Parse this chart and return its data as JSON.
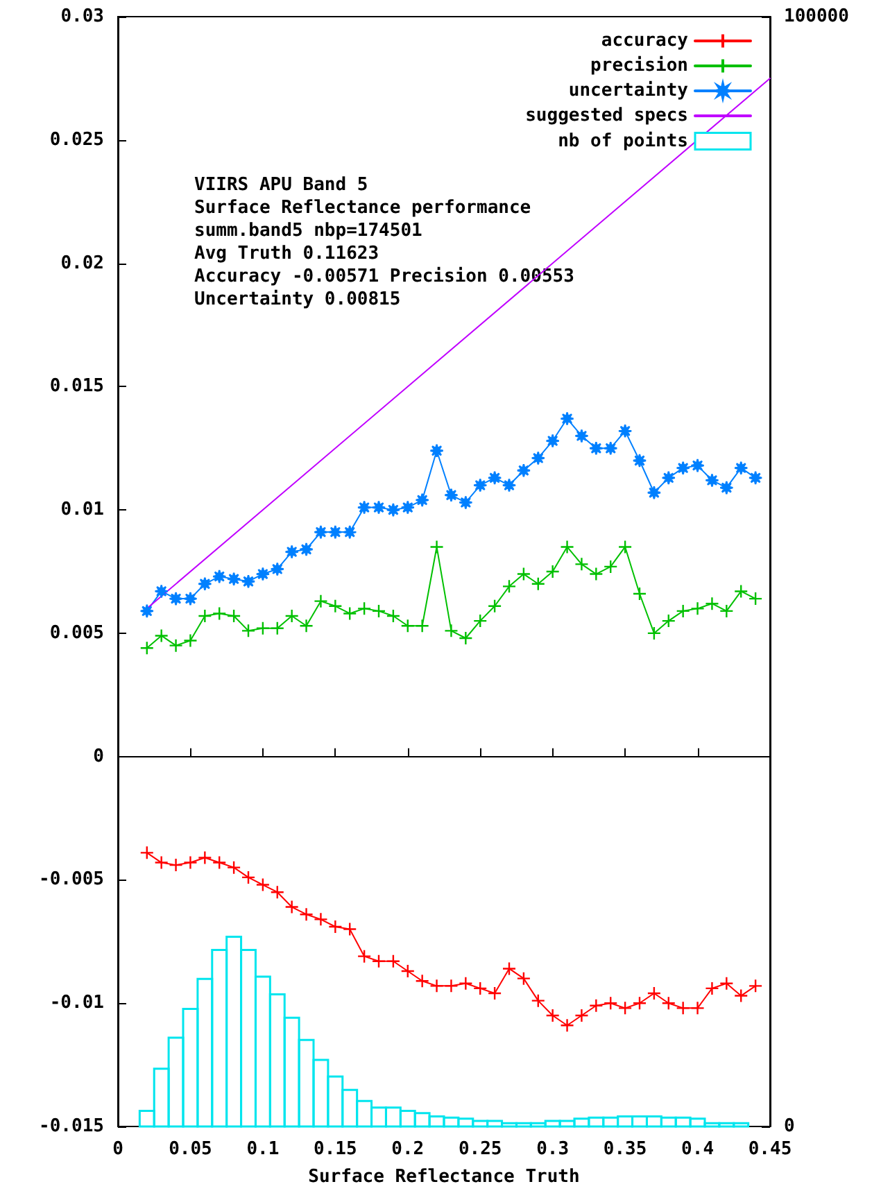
{
  "chart_data": {
    "type": "line",
    "xlabel": "Surface Reflectance Truth",
    "annotations": [
      "VIIRS APU Band 5",
      "Surface Reflectance performance",
      "summ.band5 nbp=174501",
      "Avg Truth 0.11623",
      "Accuracy -0.00571 Precision 0.00553",
      "Uncertainty 0.00815"
    ],
    "x": [
      0.02,
      0.03,
      0.04,
      0.05,
      0.06,
      0.07,
      0.08,
      0.09,
      0.1,
      0.11,
      0.12,
      0.13,
      0.14,
      0.15,
      0.16,
      0.17,
      0.18,
      0.19,
      0.2,
      0.21,
      0.22,
      0.23,
      0.24,
      0.25,
      0.26,
      0.27,
      0.28,
      0.29,
      0.3,
      0.31,
      0.32,
      0.33,
      0.34,
      0.35,
      0.36,
      0.37,
      0.38,
      0.39,
      0.4,
      0.41,
      0.42,
      0.43,
      0.44
    ],
    "series": [
      {
        "name": "accuracy",
        "color": "#ff0000",
        "marker": "cross",
        "values": [
          -0.0039,
          -0.0043,
          -0.0044,
          -0.0043,
          -0.0041,
          -0.0043,
          -0.0045,
          -0.0049,
          -0.0052,
          -0.0055,
          -0.0061,
          -0.0064,
          -0.0066,
          -0.0069,
          -0.007,
          -0.0081,
          -0.0083,
          -0.0083,
          -0.0087,
          -0.0091,
          -0.0093,
          -0.0093,
          -0.0092,
          -0.0094,
          -0.0096,
          -0.0086,
          -0.009,
          -0.0099,
          -0.0105,
          -0.0109,
          -0.0105,
          -0.0101,
          -0.01,
          -0.0102,
          -0.01,
          -0.0096,
          -0.01,
          -0.0102,
          -0.0102,
          -0.0094,
          -0.0092,
          -0.0097,
          -0.0093
        ]
      },
      {
        "name": "precision",
        "color": "#00c000",
        "marker": "cross",
        "values": [
          0.0044,
          0.0049,
          0.0045,
          0.0047,
          0.0057,
          0.0058,
          0.0057,
          0.0051,
          0.0052,
          0.0052,
          0.0057,
          0.0053,
          0.0063,
          0.0061,
          0.0058,
          0.006,
          0.0059,
          0.0057,
          0.0053,
          0.0053,
          0.0085,
          0.0051,
          0.0048,
          0.0055,
          0.0061,
          0.0069,
          0.0074,
          0.007,
          0.0075,
          0.0085,
          0.0078,
          0.0074,
          0.0077,
          0.0085,
          0.0066,
          0.005,
          0.0055,
          0.0059,
          0.006,
          0.0062,
          0.0059,
          0.0067,
          0.0064
        ]
      },
      {
        "name": "uncertainty",
        "color": "#0080ff",
        "marker": "star",
        "values": [
          0.0059,
          0.0067,
          0.0064,
          0.0064,
          0.007,
          0.0073,
          0.0072,
          0.0071,
          0.0074,
          0.0076,
          0.0083,
          0.0084,
          0.0091,
          0.0091,
          0.0091,
          0.0101,
          0.0101,
          0.01,
          0.0101,
          0.0104,
          0.0124,
          0.0106,
          0.0103,
          0.011,
          0.0113,
          0.011,
          0.0116,
          0.0121,
          0.0128,
          0.0137,
          0.013,
          0.0125,
          0.0125,
          0.0132,
          0.012,
          0.0107,
          0.0113,
          0.0117,
          0.0118,
          0.0112,
          0.0109,
          0.0117,
          0.0113
        ]
      },
      {
        "name": "suggested specs",
        "color": "#c000ff",
        "marker": "none",
        "x": [
          0.02,
          0.45
        ],
        "values": [
          0.006,
          0.0275
        ]
      },
      {
        "name": "nb of points",
        "type": "histogram",
        "axis": "y2",
        "color": "#00e5ee",
        "bins": [
          0.015,
          0.025,
          0.035,
          0.045,
          0.055,
          0.065,
          0.075,
          0.085,
          0.095,
          0.105,
          0.115,
          0.125,
          0.135,
          0.145,
          0.155,
          0.165,
          0.175,
          0.185,
          0.195,
          0.205,
          0.215,
          0.225,
          0.235,
          0.245,
          0.255,
          0.265,
          0.275,
          0.285,
          0.295,
          0.305,
          0.315,
          0.325,
          0.335,
          0.345,
          0.355,
          0.365,
          0.375,
          0.385,
          0.395,
          0.405,
          0.415,
          0.425,
          0.435
        ],
        "values": [
          1400,
          5200,
          8000,
          10600,
          13300,
          15900,
          17100,
          15900,
          13500,
          11900,
          9800,
          7800,
          6000,
          4500,
          3300,
          2300,
          1700,
          1700,
          1400,
          1200,
          900,
          800,
          700,
          500,
          500,
          300,
          300,
          300,
          500,
          500,
          700,
          800,
          800,
          900,
          900,
          900,
          800,
          800,
          700,
          300,
          300,
          300
        ]
      }
    ],
    "xlim": [
      0,
      0.45
    ],
    "xticks": [
      0,
      0.05,
      0.1,
      0.15,
      0.2,
      0.25,
      0.3,
      0.35,
      0.4,
      0.45
    ],
    "ylim": [
      -0.015,
      0.03
    ],
    "yticks": [
      -0.015,
      -0.01,
      -0.005,
      0,
      0.005,
      0.01,
      0.015,
      0.02,
      0.025,
      0.03
    ],
    "y2lim": [
      0,
      100000
    ],
    "y2ticks": [
      0,
      100000
    ],
    "legend": "top right",
    "line_style": "solid"
  }
}
